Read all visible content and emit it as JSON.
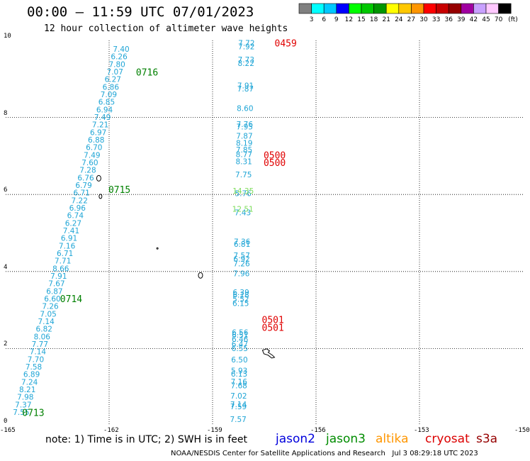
{
  "header": {
    "title": "00:00 — 11:59 UTC 07/01/2023",
    "subtitle": "12 hour collection of altimeter wave heights"
  },
  "colorbar": {
    "unit": "(ft)",
    "bins": [
      {
        "color": "#808080",
        "label": "3"
      },
      {
        "color": "#00ffff",
        "label": "6"
      },
      {
        "color": "#00c8ff",
        "label": "9"
      },
      {
        "color": "#0000ff",
        "label": "12"
      },
      {
        "color": "#00ff00",
        "label": "15"
      },
      {
        "color": "#00c800",
        "label": "18"
      },
      {
        "color": "#009600",
        "label": "21"
      },
      {
        "color": "#ffff00",
        "label": "24"
      },
      {
        "color": "#ffc800",
        "label": "27"
      },
      {
        "color": "#ff9600",
        "label": "30"
      },
      {
        "color": "#ff0000",
        "label": "33"
      },
      {
        "color": "#c80000",
        "label": "36"
      },
      {
        "color": "#960000",
        "label": "39"
      },
      {
        "color": "#a000a0",
        "label": "42"
      },
      {
        "color": "#c8a0ff",
        "label": "45"
      },
      {
        "color": "#ffc8ff",
        "label": "70"
      },
      {
        "color": "#000000",
        "label": ""
      }
    ]
  },
  "map": {
    "lon_range": [
      -165,
      -150
    ],
    "lat_range": [
      0,
      10
    ],
    "x_ticks": [
      "-165",
      "-162",
      "-159",
      "-156",
      "-153",
      "-150"
    ],
    "y_ticks": [
      "0",
      "2",
      "4",
      "6",
      "8",
      "10"
    ],
    "obs_color": "#1fa5d6",
    "obs_color_highlight": "#7ddc5a",
    "track_west": {
      "start": [
        -164.55,
        0.35
      ],
      "end": [
        -161.65,
        9.78
      ],
      "values": [
        "7.55",
        "7.37",
        "7.98",
        "8.21",
        "7.24",
        "6.89",
        "7.58",
        "7.70",
        "7.14",
        "7.77",
        "8.06",
        "6.82",
        "7.14",
        "7.05",
        "7.26",
        "6.60",
        "6.87",
        "7.67",
        "7.91",
        "8.66",
        "7.71",
        "6.71",
        "7.16",
        "6.91",
        "7.41",
        "6.27",
        "6.74",
        "6.96",
        "7.22",
        "6.71",
        "6.79",
        "6.76",
        "7.28",
        "7.60",
        "7.49",
        "6.70",
        "6.88",
        "6.97",
        "7.21",
        "7.49",
        "6.94",
        "6.85",
        "7.09",
        "6.86",
        "6.27",
        "7.07",
        "7.80",
        "6.26",
        "7.40"
      ]
    },
    "track_east": [
      {
        "v": "7.57",
        "lat": 0.17
      },
      {
        "v": "7.59",
        "lat": 0.5
      },
      {
        "v": "7.14",
        "lat": 0.55
      },
      {
        "v": "7.02",
        "lat": 0.77
      },
      {
        "v": "7.68",
        "lat": 1.04
      },
      {
        "v": "7.16",
        "lat": 1.14
      },
      {
        "v": "6.13",
        "lat": 1.34
      },
      {
        "v": "5.93",
        "lat": 1.43
      },
      {
        "v": "6.50",
        "lat": 1.71
      },
      {
        "v": "6.55",
        "lat": 2.01
      },
      {
        "v": "6.47",
        "lat": 2.12
      },
      {
        "v": "6.46",
        "lat": 2.25
      },
      {
        "v": "6.51",
        "lat": 2.36
      },
      {
        "v": "6.56",
        "lat": 2.42
      },
      {
        "v": "6.15",
        "lat": 3.18
      },
      {
        "v": "5.52",
        "lat": 3.29
      },
      {
        "v": "6.18",
        "lat": 3.4
      },
      {
        "v": "6.39",
        "lat": 3.46
      },
      {
        "v": "7.96",
        "lat": 3.95
      },
      {
        "v": "7.26",
        "lat": 4.21
      },
      {
        "v": "6.92",
        "lat": 4.33
      },
      {
        "v": "7.57",
        "lat": 4.42
      },
      {
        "v": "6.81",
        "lat": 4.71
      },
      {
        "v": "7.36",
        "lat": 4.78
      },
      {
        "v": "7.43",
        "lat": 5.53
      },
      {
        "v": "12.51",
        "lat": 5.63,
        "hl": true
      },
      {
        "v": "5.76",
        "lat": 6.03
      },
      {
        "v": "14.35",
        "lat": 6.1,
        "hl": true
      },
      {
        "v": "7.75",
        "lat": 6.52
      },
      {
        "v": "8.31",
        "lat": 6.86
      },
      {
        "v": "8.77",
        "lat": 7.04
      },
      {
        "v": "7.85",
        "lat": 7.16
      },
      {
        "v": "8.19",
        "lat": 7.34
      },
      {
        "v": "7.87",
        "lat": 7.52
      },
      {
        "v": "7.95",
        "lat": 7.76
      },
      {
        "v": "7.76",
        "lat": 7.83
      },
      {
        "v": "8.60",
        "lat": 8.24
      },
      {
        "v": "7.87",
        "lat": 8.75
      },
      {
        "v": "7.91",
        "lat": 8.83
      },
      {
        "v": "8.22",
        "lat": 9.41
      },
      {
        "v": "7.73",
        "lat": 9.5
      },
      {
        "v": "7.92",
        "lat": 9.84
      },
      {
        "v": "7.72",
        "lat": 9.94
      }
    ],
    "times": [
      {
        "label": "0713",
        "lon": -164.2,
        "lat": 0.34,
        "color": "#008000"
      },
      {
        "label": "0714",
        "lon": -163.1,
        "lat": 3.3,
        "color": "#008000"
      },
      {
        "label": "0715",
        "lon": -161.7,
        "lat": 6.13,
        "color": "#008000"
      },
      {
        "label": "0716",
        "lon": -160.9,
        "lat": 9.18,
        "color": "#008000"
      },
      {
        "label": "0501",
        "lon": -157.25,
        "lat": 2.55,
        "color": "#e00000"
      },
      {
        "label": "0501",
        "lon": -157.25,
        "lat": 2.75,
        "color": "#e00000"
      },
      {
        "label": "0500",
        "lon": -157.2,
        "lat": 6.83,
        "color": "#e00000"
      },
      {
        "label": "0500",
        "lon": -157.2,
        "lat": 7.03,
        "color": "#e00000"
      },
      {
        "label": "0459",
        "lon": -156.88,
        "lat": 9.94,
        "color": "#e00000"
      }
    ]
  },
  "footer": {
    "note": "note: 1) Time is in UTC; 2) SWH is in feet",
    "legend": [
      {
        "label": "jason2",
        "color": "#0000dc"
      },
      {
        "label": "jason3",
        "color": "#008c00"
      },
      {
        "label": "altika",
        "color": "#ff9600"
      },
      {
        "label": "cryosat",
        "color": "#dc0000"
      },
      {
        "label": "s3a",
        "color": "#960000"
      }
    ],
    "credit": "NOAA/NESDIS Center for Satellite Applications and Research",
    "timestamp": "Jul  3 08:29:18 UTC 2023"
  }
}
